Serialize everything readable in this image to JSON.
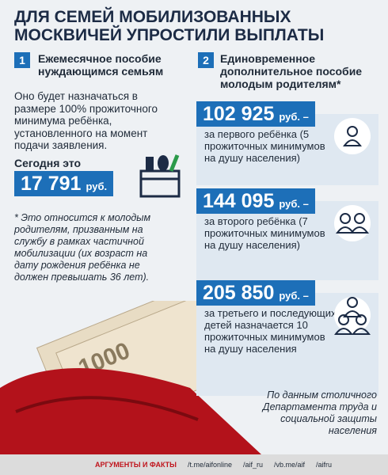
{
  "title": "ДЛЯ СЕМЕЙ МОБИЛИЗОВАННЫХ МОСКВИЧЕЙ УПРОСТИЛИ ВЫПЛАТЫ",
  "left": {
    "number": "1",
    "heading": "Ежемесячное пособие нуждающимся семьям",
    "text": "Оно будет назначаться в размере 100% прожиточного минимума ребёнка, установленного на момент подачи заявления.",
    "today_label": "Сегодня это",
    "amount": "17 791",
    "currency": "руб.",
    "footnote": "* Это относится к молодым родителям, призванным на службу в рамках частичной мобилизации (их возраст на дату рождения ребёнка не должен превышать 36 лет)."
  },
  "right": {
    "number": "2",
    "heading": "Единовременное дополнительное пособие молодым родителям*",
    "payments": [
      {
        "amount": "102 925",
        "currency": "руб. –",
        "text": "за первого ребёнка (5 прожиточных минимумов на душу населения)"
      },
      {
        "amount": "144 095",
        "currency": "руб. –",
        "text": "за второго ребёнка (7 прожиточных минимумов на душу населения)"
      },
      {
        "amount": "205 850",
        "currency": "руб. –",
        "text": "за третьего и последующих детей назначается 10 прожиточных минимумов на душу населения"
      }
    ]
  },
  "source": "По данным столичного Департамента труда и социальной защиты населения",
  "footer": {
    "brand": "АРГУМЕНТЫ И ФАКТЫ",
    "links": [
      "/t.me/aifonline",
      "/aif_ru",
      "/vb.me/aif",
      "/aifru"
    ]
  }
}
